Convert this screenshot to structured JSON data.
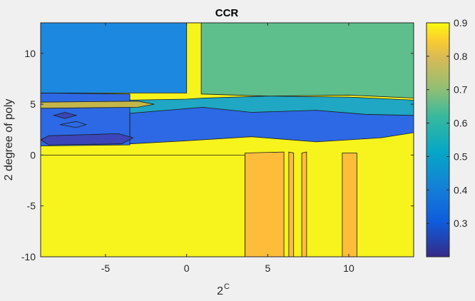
{
  "chart_data": {
    "type": "contourf",
    "title": "CCR",
    "xlabel": "2",
    "xlabel_superscript": "C",
    "ylabel": "2 degree of poly",
    "xlim": [
      -9,
      14
    ],
    "ylim": [
      -10,
      13
    ],
    "xticks": [
      -5,
      0,
      5,
      10
    ],
    "yticks": [
      -10,
      -5,
      0,
      5,
      10
    ],
    "colorbar": {
      "range": [
        0.2,
        0.9
      ],
      "ticks": [
        0.3,
        0.4,
        0.5,
        0.6,
        0.7,
        0.8,
        0.9
      ]
    },
    "regions": [
      {
        "level": 0.9,
        "color": "#f6f31d",
        "poly": [
          [
            -9,
            0
          ],
          [
            3.6,
            0
          ],
          [
            3.6,
            -10
          ],
          [
            -9,
            -10
          ]
        ]
      },
      {
        "level": 0.8,
        "color": "#fdbc3a",
        "poly": [
          [
            3.6,
            0.2
          ],
          [
            6,
            0.3
          ],
          [
            6,
            -10
          ],
          [
            3.6,
            -10
          ]
        ]
      },
      {
        "level": 0.8,
        "color": "#fdbc3a",
        "poly": [
          [
            6.3,
            0.3
          ],
          [
            6.6,
            0.2
          ],
          [
            6.6,
            -10
          ],
          [
            6.3,
            -10
          ]
        ]
      },
      {
        "level": 0.8,
        "color": "#fdbc3a",
        "poly": [
          [
            7.1,
            0.2
          ],
          [
            7.4,
            0.3
          ],
          [
            7.4,
            -10
          ],
          [
            7.1,
            -10
          ]
        ]
      },
      {
        "level": 0.8,
        "color": "#fdbc3a",
        "poly": [
          [
            9.6,
            0.2
          ],
          [
            10.5,
            0.2
          ],
          [
            10.5,
            -10
          ],
          [
            9.6,
            -10
          ]
        ]
      },
      {
        "level": 0.55,
        "color": "#1fa7c4",
        "poly": [
          [
            -3.5,
            2.7
          ],
          [
            -1,
            2.9
          ],
          [
            2,
            3.1
          ],
          [
            6,
            2.9
          ],
          [
            10,
            2.5
          ],
          [
            14,
            2.6
          ],
          [
            14,
            5.4
          ],
          [
            10,
            5.7
          ],
          [
            5,
            5.8
          ],
          [
            1,
            5.6
          ],
          [
            0,
            5.5
          ],
          [
            -3.5,
            5.4
          ]
        ]
      },
      {
        "level": 0.35,
        "color": "#2d69e4",
        "poly": [
          [
            -9,
            0.9
          ],
          [
            -3.5,
            1.0
          ],
          [
            -3.5,
            6.0
          ],
          [
            -9,
            6.1
          ]
        ]
      },
      {
        "level": 0.3,
        "color": "#2d69e4",
        "poly": [
          [
            -3.5,
            1.1
          ],
          [
            0,
            1.4
          ],
          [
            4,
            1.8
          ],
          [
            8,
            1.3
          ],
          [
            12,
            1.7
          ],
          [
            14,
            2.2
          ],
          [
            14,
            3.9
          ],
          [
            11,
            4.0
          ],
          [
            8,
            4.4
          ],
          [
            4,
            4.2
          ],
          [
            1,
            4.7
          ],
          [
            -3.5,
            4.1
          ]
        ]
      },
      {
        "level": 0.45,
        "color": "#1c88e0",
        "poly": [
          [
            -9,
            6.1
          ],
          [
            0,
            6.1
          ],
          [
            0,
            13
          ],
          [
            -9,
            13
          ]
        ]
      },
      {
        "level": 0.6,
        "color": "#5fbf8c",
        "poly": [
          [
            0.9,
            6.0
          ],
          [
            5,
            5.8
          ],
          [
            10,
            5.9
          ],
          [
            14,
            5.6
          ],
          [
            14,
            13
          ],
          [
            0.9,
            13
          ]
        ]
      },
      {
        "level": 0.25,
        "color": "#3c46b8",
        "poly": [
          [
            -8.5,
            1.0
          ],
          [
            -4,
            1.1
          ],
          [
            -3.3,
            1.7
          ],
          [
            -4.2,
            2.1
          ],
          [
            -8.5,
            1.9
          ],
          [
            -9,
            1.5
          ]
        ]
      },
      {
        "level": 0.72,
        "color": "#c4b64a",
        "poly": [
          [
            -9,
            4.6
          ],
          [
            -3,
            4.7
          ],
          [
            -2,
            5.0
          ],
          [
            -3,
            5.3
          ],
          [
            -9,
            5.2
          ]
        ]
      },
      {
        "level": 0.25,
        "color": "#3c46b8",
        "poly": [
          [
            -8.2,
            3.9
          ],
          [
            -7.5,
            3.6
          ],
          [
            -6.8,
            3.9
          ],
          [
            -7.5,
            4.2
          ]
        ]
      },
      {
        "level": 0.3,
        "color": "#2d69e4",
        "poly": [
          [
            -7.8,
            3.0
          ],
          [
            -6.8,
            2.7
          ],
          [
            -6.2,
            3.0
          ],
          [
            -6.8,
            3.3
          ]
        ]
      }
    ]
  }
}
